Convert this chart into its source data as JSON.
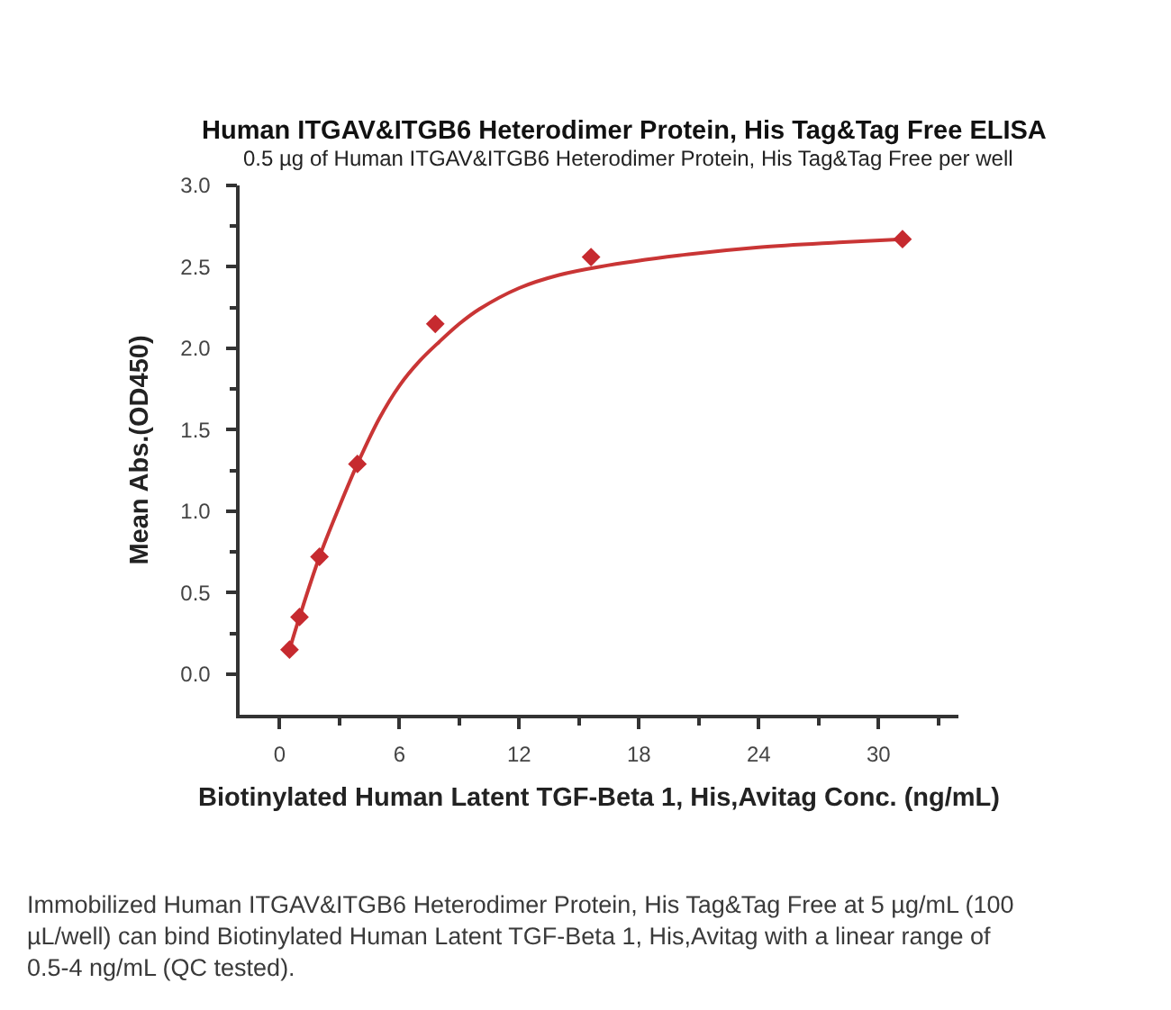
{
  "chart_data": {
    "type": "scatter",
    "title": "Human ITGAV&ITGB6 Heterodimer Protein, His Tag&Tag Free ELISA",
    "subtitle": "0.5 µg of Human ITGAV&ITGB6 Heterodimer Protein, His Tag&Tag Free per well",
    "xlabel": "Biotinylated Human Latent TGF-Beta 1, His,Avitag Conc. (ng/mL)",
    "ylabel": "Mean Abs.(OD450)",
    "annotations": [
      "Immobilized Human ITGAV&ITGB6 Heterodimer Protein, His Tag&Tag Free at 5 µg/mL (100 µL/well) can bind Biotinylated Human Latent TGF-Beta 1, His,Avitag with a linear range of 0.5-4 ng/mL (QC tested)."
    ],
    "series": [
      {
        "marker": "diamond",
        "color": "#c62a2f",
        "x": [
          0.5,
          1,
          2,
          3.9,
          7.8,
          15.6,
          31.2
        ],
        "values": [
          0.15,
          0.35,
          0.72,
          1.29,
          2.15,
          2.56,
          2.67
        ]
      },
      {
        "type": "line",
        "marker": "none",
        "color": "#c93535",
        "x": [
          0.5,
          1,
          2,
          3,
          3.9,
          5,
          6,
          7,
          8,
          9,
          10,
          12,
          14,
          16,
          20,
          24,
          28,
          31.2
        ],
        "values": [
          0.15,
          0.35,
          0.72,
          1.03,
          1.29,
          1.57,
          1.77,
          1.92,
          2.04,
          2.15,
          2.24,
          2.37,
          2.45,
          2.5,
          2.57,
          2.62,
          2.65,
          2.67
        ]
      }
    ],
    "xlim": [
      -2,
      34
    ],
    "xticks": [
      0,
      {
        "value": 3,
        "label": null
      },
      6,
      {
        "value": 9,
        "label": null
      },
      12,
      {
        "value": 15,
        "label": null
      },
      18,
      {
        "value": 21,
        "label": null
      },
      24,
      {
        "value": 27,
        "label": null
      },
      30,
      {
        "value": 33,
        "label": null
      }
    ],
    "ylim": [
      -0.25,
      3
    ],
    "yticks": [
      {
        "value": 0,
        "label": "0.0"
      },
      {
        "value": 0.25,
        "label": null
      },
      {
        "value": 0.5,
        "label": "0.5"
      },
      {
        "value": 0.75,
        "label": null
      },
      {
        "value": 1,
        "label": "1.0"
      },
      {
        "value": 1.25,
        "label": null
      },
      {
        "value": 1.5,
        "label": "1.5"
      },
      {
        "value": 1.75,
        "label": null
      },
      {
        "value": 2,
        "label": "2.0"
      },
      {
        "value": 2.25,
        "label": null
      },
      {
        "value": 2.5,
        "label": "2.5"
      },
      {
        "value": 2.75,
        "label": null
      },
      {
        "value": 3,
        "label": "3.0"
      }
    ]
  }
}
